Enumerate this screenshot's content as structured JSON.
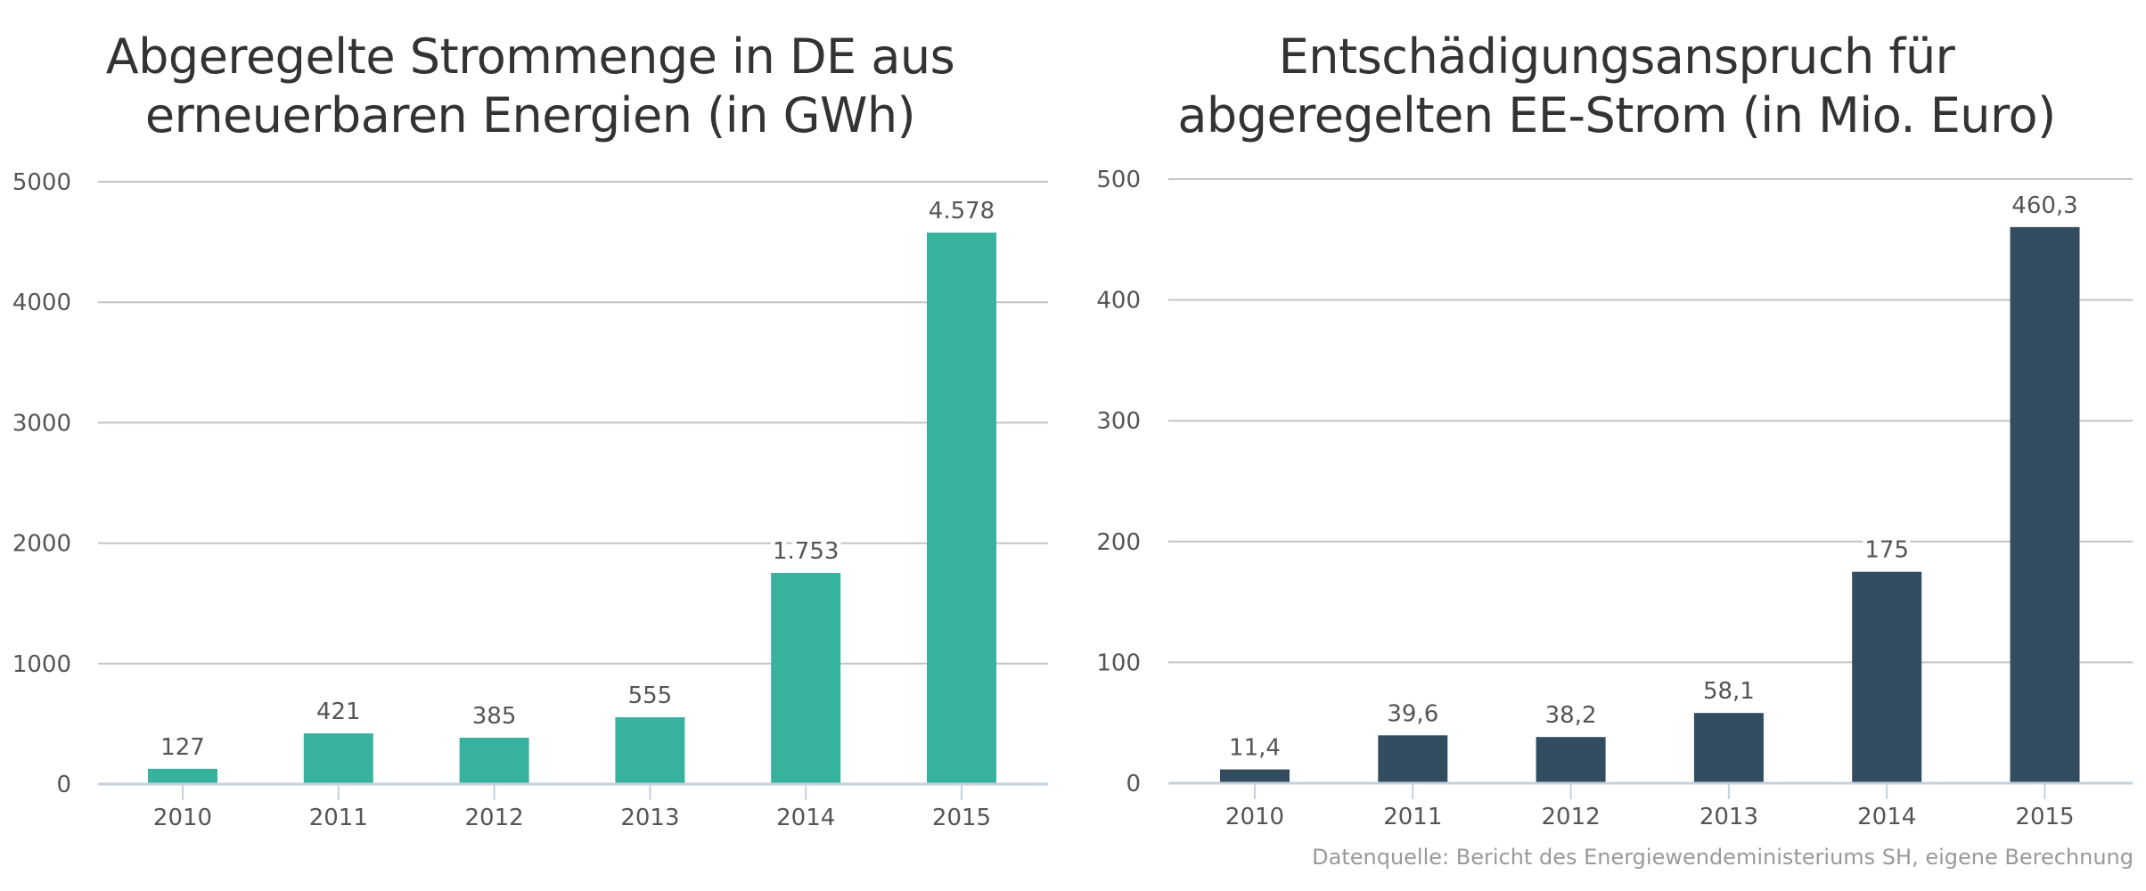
{
  "chart_data": [
    {
      "type": "bar",
      "title": [
        "Abgeregelte Strommenge in DE aus",
        "erneuerbaren Energien (in GWh)"
      ],
      "xlabel": "",
      "ylabel": "",
      "categories": [
        "2010",
        "2011",
        "2012",
        "2013",
        "2014",
        "2015"
      ],
      "values": [
        127,
        421,
        385,
        555,
        1753,
        4578
      ],
      "data_labels": [
        "127",
        "421",
        "385",
        "555",
        "1.753",
        "4.578"
      ],
      "yticks": [
        0,
        1000,
        2000,
        3000,
        4000,
        5000
      ],
      "ytick_labels": [
        "0",
        "1000",
        "2000",
        "3000",
        "4000",
        "5000"
      ],
      "ylim": [
        0,
        5000
      ],
      "grid": true,
      "color": "#37b29c"
    },
    {
      "type": "bar",
      "title": [
        "Entschädigungsanspruch für",
        "abgeregelten EE-Strom (in Mio. Euro)"
      ],
      "xlabel": "",
      "ylabel": "",
      "categories": [
        "2010",
        "2011",
        "2012",
        "2013",
        "2014",
        "2015"
      ],
      "values": [
        11.4,
        39.6,
        38.2,
        58.1,
        175,
        460.3
      ],
      "data_labels": [
        "11,4",
        "39,6",
        "38,2",
        "58,1",
        "175",
        "460,3"
      ],
      "yticks": [
        0,
        100,
        200,
        300,
        400,
        500
      ],
      "ytick_labels": [
        "0",
        "100",
        "200",
        "300",
        "400",
        "500"
      ],
      "ylim": [
        0,
        500
      ],
      "grid": true,
      "color": "#334d60"
    }
  ],
  "source_note": "Datenquelle: Bericht des Energiewendeministeriums SH, eigene Berechnung"
}
